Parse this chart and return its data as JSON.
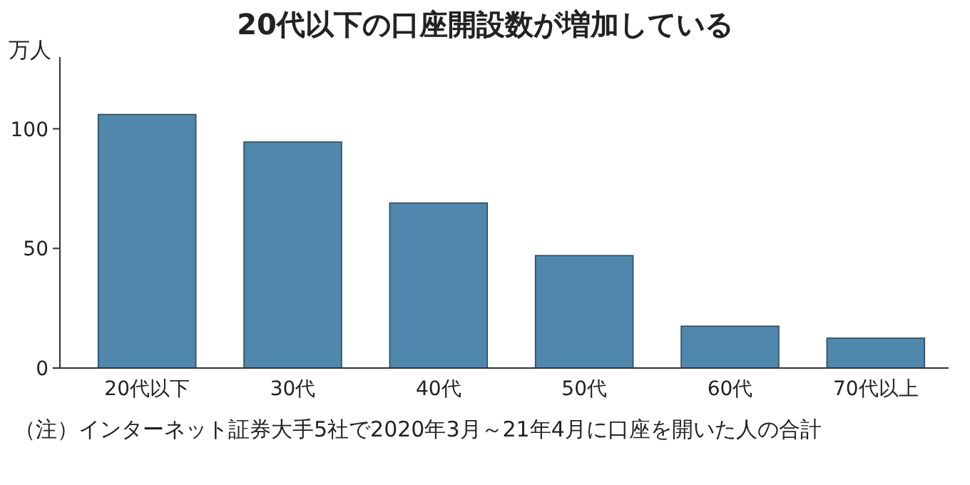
{
  "chart_data": {
    "type": "bar",
    "title": "20代以下の口座開設数が増加している",
    "ylabel": "万人",
    "categories": [
      "20代以下",
      "30代",
      "40代",
      "50代",
      "60代",
      "70代以上"
    ],
    "values": [
      106,
      94.5,
      69,
      47,
      17.5,
      12.5
    ],
    "color": "#4f87ad",
    "ylim": [
      0,
      130
    ],
    "yticks": [
      0,
      50,
      100
    ],
    "annotations": [
      "（注）インターネット証券大手5社で2020年3月～21年4月に口座を開いた人の合計"
    ]
  }
}
